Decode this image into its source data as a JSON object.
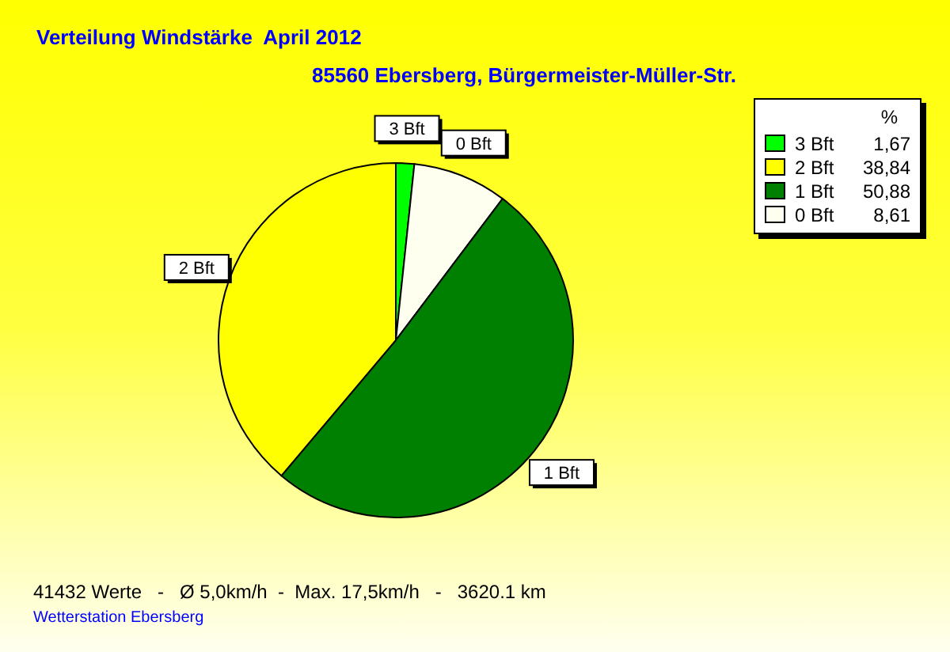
{
  "chart_data": {
    "type": "pie",
    "title": "Verteilung Windstärke  April 2012",
    "subtitle": "85560 Ebersberg, Bürgermeister-Müller-Str.",
    "categories": [
      "3 Bft",
      "0 Bft",
      "1 Bft",
      "2 Bft"
    ],
    "values": [
      1.67,
      8.61,
      50.88,
      38.84
    ],
    "colors": [
      "#00ff00",
      "#fffff0",
      "#008000",
      "#ffff00"
    ],
    "value_labels": [
      "1,67",
      "8,61",
      "50,88",
      "38,84"
    ],
    "legend_title": "%",
    "legend": "top right",
    "annotations": [
      "41432 Werte   -   Ø 5,0km/h  -  Max. 17,5km/h   -   3620.1 km",
      "Wetterstation Ebersberg"
    ]
  }
}
